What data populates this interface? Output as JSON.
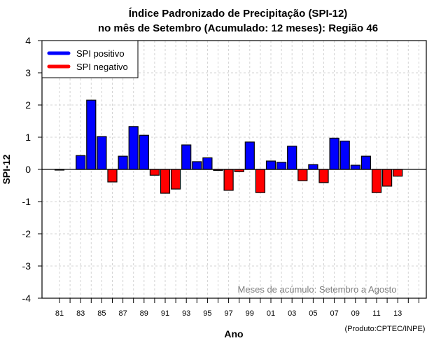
{
  "chart_data": {
    "type": "bar",
    "title": "Índice Padronizado de Precipitação (SPI-12)",
    "subtitle": "no mês de Setembro (Acumulado: 12 meses): Região 46",
    "xlabel": "Ano",
    "ylabel": "SPI-12",
    "ylim": [
      -4,
      4
    ],
    "yticks": [
      -4,
      -3,
      -2,
      -1,
      0,
      1,
      2,
      3,
      4
    ],
    "xlim": [
      1980,
      2016
    ],
    "xtick_years": [
      1981,
      1982,
      1983,
      1984,
      1985,
      1986,
      1987,
      1988,
      1989,
      1990,
      1991,
      1992,
      1993,
      1994,
      1995,
      1996,
      1997,
      1998,
      1999,
      2000,
      2001,
      2002,
      2003,
      2004,
      2005,
      2006,
      2007,
      2008,
      2009,
      2010,
      2011,
      2012,
      2013,
      2014,
      2015
    ],
    "xtick_labels": [
      "81",
      "83",
      "85",
      "87",
      "89",
      "91",
      "93",
      "95",
      "97",
      "99",
      "01",
      "03",
      "05",
      "07",
      "09",
      "11",
      "13"
    ],
    "xtick_label_years": [
      1981,
      1983,
      1985,
      1987,
      1989,
      1991,
      1993,
      1995,
      1997,
      1999,
      2001,
      2003,
      2005,
      2007,
      2009,
      2011,
      2013
    ],
    "grid": true,
    "categories": [
      1981,
      1982,
      1983,
      1984,
      1985,
      1986,
      1987,
      1988,
      1989,
      1990,
      1991,
      1992,
      1993,
      1994,
      1995,
      1996,
      1997,
      1998,
      1999,
      2000,
      2001,
      2002,
      2003,
      2004,
      2005,
      2006,
      2007,
      2008,
      2009,
      2010,
      2011,
      2012,
      2013
    ],
    "values": [
      -0.02,
      0.0,
      0.43,
      2.15,
      1.02,
      -0.39,
      0.41,
      1.33,
      1.06,
      -0.18,
      -0.74,
      -0.61,
      0.76,
      0.24,
      0.36,
      -0.03,
      -0.65,
      -0.07,
      0.85,
      -0.72,
      0.26,
      0.22,
      0.72,
      -0.35,
      0.15,
      -0.41,
      0.97,
      0.88,
      0.13,
      0.41,
      -0.72,
      -0.52,
      -0.21
    ],
    "legend": {
      "position": "top-left",
      "entries": [
        {
          "label": "SPI positivo",
          "color": "#0000ff"
        },
        {
          "label": "SPI negativo",
          "color": "#ff0000"
        }
      ]
    },
    "annotation": "Meses de acúmulo: Setembro a Agosto",
    "credit": "(Produto:CPTEC/INPE)",
    "colors": {
      "positive": "#0000ff",
      "negative": "#ff0000",
      "grid": "#d3d3d3",
      "annotation": "#7f7f7f"
    }
  }
}
